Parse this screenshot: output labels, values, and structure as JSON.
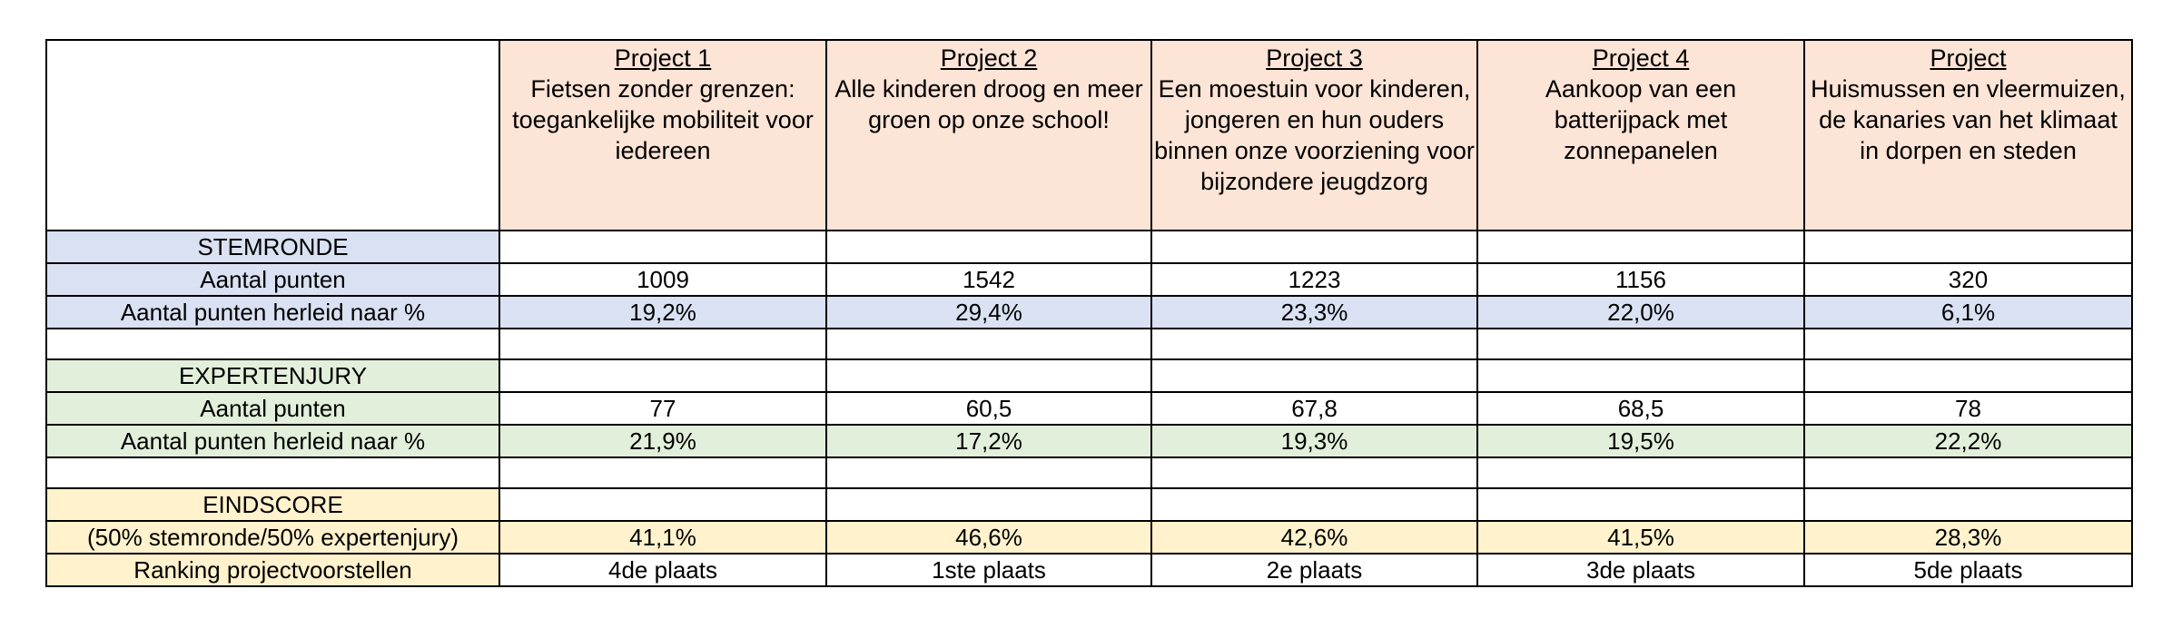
{
  "projects": [
    {
      "number": "Project 1",
      "title": "Fietsen zonder grenzen: toegankelijke mobiliteit voor iedereen"
    },
    {
      "number": "Project 2",
      "title": "Alle kinderen droog en meer groen op onze school!"
    },
    {
      "number": "Project 3",
      "title": "Een moestuin voor kinderen, jongeren en hun ouders binnen onze voorziening voor bijzondere jeugdzorg"
    },
    {
      "number": "Project 4",
      "title": "Aankoop van een batterijpack met zonnepanelen"
    },
    {
      "number": "Project",
      "title": "Huismussen en vleermuizen, de kanaries van het klimaat in dorpen en steden"
    }
  ],
  "stemronde": {
    "section_label": "STEMRONDE",
    "points_label": "Aantal punten",
    "pct_label": "Aantal punten herleid naar %",
    "points": [
      "1009",
      "1542",
      "1223",
      "1156",
      "320"
    ],
    "pct": [
      "19,2%",
      "29,4%",
      "23,3%",
      "22,0%",
      "6,1%"
    ]
  },
  "expertenjury": {
    "section_label": "EXPERTENJURY",
    "points_label": "Aantal punten",
    "pct_label": "Aantal punten herleid naar %",
    "points": [
      "77",
      "60,5",
      "67,8",
      "68,5",
      "78"
    ],
    "pct": [
      "21,9%",
      "17,2%",
      "19,3%",
      "19,5%",
      "22,2%"
    ]
  },
  "eindscore": {
    "section_label": "EINDSCORE",
    "formula_label": "(50% stemronde/50% expertenjury)",
    "ranking_label": "Ranking projectvoorstellen",
    "pct": [
      "41,1%",
      "46,6%",
      "42,6%",
      "41,5%",
      "28,3%"
    ],
    "ranking": [
      "4de plaats",
      "1ste plaats",
      "2e plaats",
      "3de plaats",
      "5de plaats"
    ]
  },
  "colors": {
    "header_peach": "#fce4d6",
    "stemronde_blue": "#d9e1f2",
    "expertenjury_green": "#e2efda",
    "eindscore_yellow": "#fff2cc"
  }
}
